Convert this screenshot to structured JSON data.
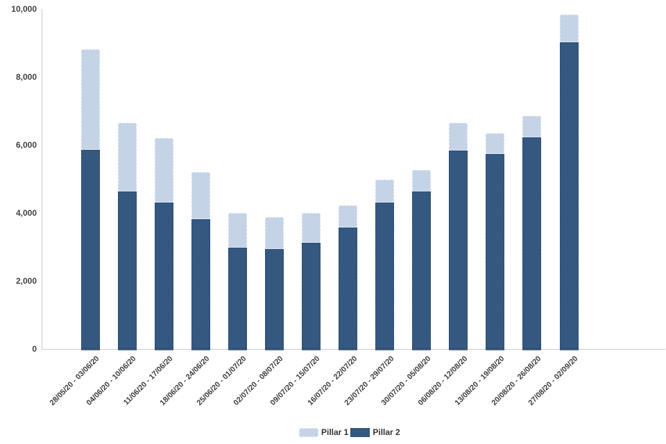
{
  "chart_data": {
    "type": "bar",
    "stacked": true,
    "title": "",
    "xlabel": "",
    "ylabel": "",
    "categories": [
      "28/05/20 - 03/06/20",
      "04/06/20 - 10/06/20",
      "11/06/20 - 17/06/20",
      "18/06/20 - 24/06/20",
      "25/06/20 - 01/07/20",
      "02/07/20 - 08/07/20",
      "09/07/20 - 15/07/20",
      "16/07/20 - 22/07/20",
      "23/07/20 - 29/07/20",
      "30/07/20 - 05/08/20",
      "06/08/20 - 12/08/20",
      "13/08/20 - 19/08/20",
      "20/08/20 - 26/08/20",
      "27/08/20 - 02/09/20"
    ],
    "series": [
      {
        "name": "Pillar 1",
        "color": "#C5D3E7",
        "values": [
          2960,
          2010,
          1890,
          1380,
          1030,
          950,
          890,
          650,
          680,
          630,
          820,
          620,
          630,
          810
        ]
      },
      {
        "name": "Pillar 2",
        "color": "#345880",
        "values": [
          5860,
          4640,
          4310,
          3820,
          2980,
          2930,
          3120,
          3570,
          4300,
          4640,
          5830,
          5730,
          6220,
          9030
        ]
      }
    ],
    "stack_order_bottom_to_top": [
      "Pillar 2",
      "Pillar 1"
    ],
    "ylim": [
      0,
      10000
    ],
    "ytick_interval": 2000,
    "ytick_labels": [
      "0",
      "2,000",
      "4,000",
      "6,000",
      "8,000",
      "10,000"
    ],
    "x_label_rotation": -45,
    "grid": false,
    "legend_position": "bottom-center",
    "axis_color": "#c9c9c9",
    "label_color": "#404040"
  }
}
